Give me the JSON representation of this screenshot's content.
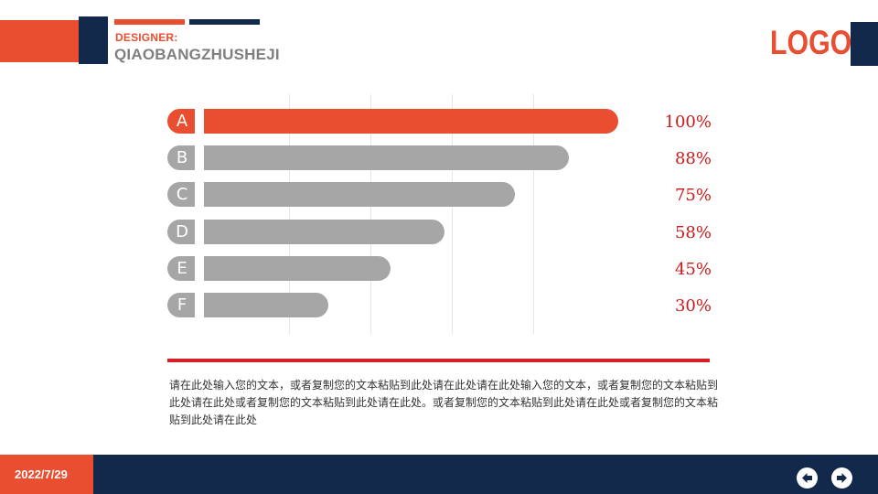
{
  "header": {
    "designer_label": "DESIGNER:",
    "designer_name": "QIAOBANGZHUSHEJI",
    "logo_text": "LOGO"
  },
  "chart_data": {
    "type": "bar",
    "orientation": "horizontal",
    "categories": [
      "A",
      "B",
      "C",
      "D",
      "E",
      "F"
    ],
    "values": [
      100,
      88,
      75,
      58,
      45,
      30
    ],
    "value_labels": [
      "100%",
      "88%",
      "75%",
      "58%",
      "45%",
      "30%"
    ],
    "xlim": [
      0,
      100
    ],
    "grid": true,
    "colors": {
      "highlight": "#e84e2f",
      "default": "#a6a6a6",
      "value_label": "#cc1a1a"
    }
  },
  "body_text": "请在此处输入您的文本，或者复制您的文本粘贴到此处请在此处请在此处输入您的文本，或者复制您的文本粘贴到此处请在此处或者复制您的文本粘贴到此处请在此处。或者复制您的文本粘贴到此处请在此处或者复制您的文本粘贴到此处请在此处",
  "footer": {
    "date": "2022/7/29",
    "prev_icon": "arrow-left-icon",
    "next_icon": "arrow-right-icon"
  },
  "theme": {
    "accent": "#e84e2f",
    "navy": "#13294b",
    "separator": "#d81f26"
  }
}
